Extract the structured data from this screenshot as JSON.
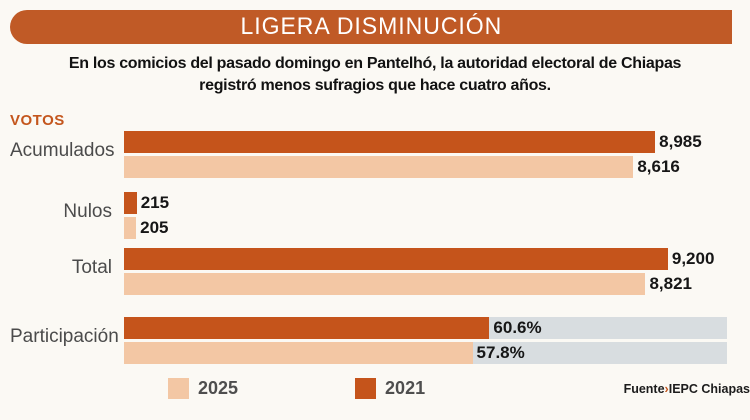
{
  "header": {
    "title": "LIGERA DISMINUCIÓN"
  },
  "subtitle": {
    "line1": "En los comicios del pasado domingo en Pantelhó, la autoridad electoral de Chiapas",
    "line2": "registró menos sufragios que hace cuatro años."
  },
  "axis_label": "VOTOS",
  "colors": {
    "header_bg": "#C05A26",
    "accent": "#C4561D",
    "series_2021": "#C5541B",
    "series_2025": "#F3C7A4",
    "track": "#D8DDE0"
  },
  "legend_order": [
    "2025",
    "2021"
  ],
  "source": {
    "prefix": "Fuente",
    "separator": "›",
    "text": "IEPC Chiapas"
  },
  "chart_data": {
    "type": "bar",
    "orientation": "horizontal",
    "title": "LIGERA DISMINUCIÓN",
    "axis_label": "VOTOS",
    "legend_position": "bottom",
    "series": [
      {
        "name": "2021",
        "color": "#C5541B"
      },
      {
        "name": "2025",
        "color": "#F3C7A4"
      }
    ],
    "groups": [
      {
        "category": "Acumulados",
        "scale_max": 10200,
        "track": false,
        "bars": [
          {
            "series": "2021",
            "value": 8985,
            "label": "8,985"
          },
          {
            "series": "2025",
            "value": 8616,
            "label": "8,616"
          }
        ]
      },
      {
        "category": "Nulos",
        "scale_max": 10200,
        "track": false,
        "bars": [
          {
            "series": "2021",
            "value": 215,
            "label": "215"
          },
          {
            "series": "2025",
            "value": 205,
            "label": "205"
          }
        ]
      },
      {
        "category": "Total",
        "scale_max": 10200,
        "track": false,
        "bars": [
          {
            "series": "2021",
            "value": 9200,
            "label": "9,200"
          },
          {
            "series": "2025",
            "value": 8821,
            "label": "8,821"
          }
        ]
      },
      {
        "category": "Participación",
        "scale_max": 100,
        "track": true,
        "bars": [
          {
            "series": "2021",
            "value": 60.6,
            "label": "60.6%"
          },
          {
            "series": "2025",
            "value": 57.8,
            "label": "57.8%"
          }
        ]
      }
    ]
  }
}
